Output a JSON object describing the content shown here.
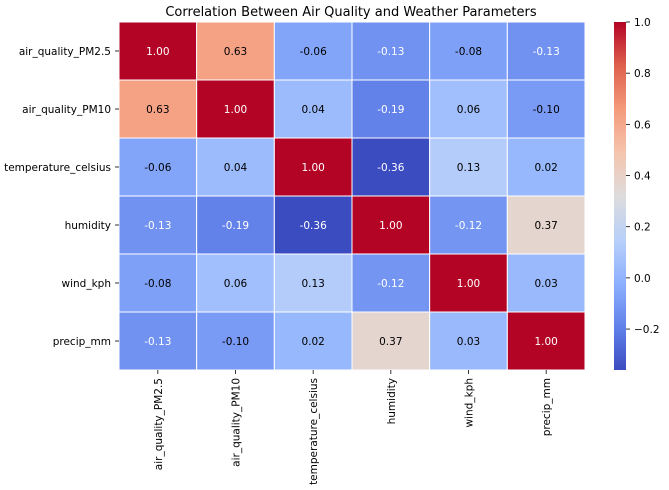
{
  "chart_data": {
    "type": "heatmap",
    "title": "Correlation Between Air Quality and Weather Parameters",
    "row_labels": [
      "air_quality_PM2.5",
      "air_quality_PM10",
      "temperature_celsius",
      "humidity",
      "wind_kph",
      "precip_mm"
    ],
    "col_labels": [
      "air_quality_PM2.5",
      "air_quality_PM10",
      "temperature_celsius",
      "humidity",
      "wind_kph",
      "precip_mm"
    ],
    "values": [
      [
        1.0,
        0.63,
        -0.06,
        -0.13,
        -0.08,
        -0.13
      ],
      [
        0.63,
        1.0,
        0.04,
        -0.19,
        0.06,
        -0.1
      ],
      [
        -0.06,
        0.04,
        1.0,
        -0.36,
        0.13,
        0.02
      ],
      [
        -0.13,
        -0.19,
        -0.36,
        1.0,
        -0.12,
        0.37
      ],
      [
        -0.08,
        0.06,
        0.13,
        -0.12,
        1.0,
        0.03
      ],
      [
        -0.13,
        -0.1,
        0.02,
        0.37,
        0.03,
        1.0
      ]
    ],
    "cell_labels": [
      [
        "1.00",
        "0.63",
        "-0.06",
        "-0.13",
        "-0.08",
        "-0.13"
      ],
      [
        "0.63",
        "1.00",
        "0.04",
        "-0.19",
        "0.06",
        "-0.10"
      ],
      [
        "-0.06",
        "0.04",
        "1.00",
        "-0.36",
        "0.13",
        "0.02"
      ],
      [
        "-0.13",
        "-0.19",
        "-0.36",
        "1.00",
        "-0.12",
        "0.37"
      ],
      [
        "-0.08",
        "0.06",
        "0.13",
        "-0.12",
        "1.00",
        "0.03"
      ],
      [
        "-0.13",
        "-0.10",
        "0.02",
        "0.37",
        "0.03",
        "1.00"
      ]
    ],
    "colormap": "coolwarm",
    "colorbar": {
      "vmin": -0.36,
      "vmax": 1.0,
      "ticks": [
        -0.2,
        0.0,
        0.2,
        0.4,
        0.6,
        0.8,
        1.0
      ],
      "tick_labels": [
        "−0.2",
        "0.0",
        "0.2",
        "0.4",
        "0.6",
        "0.8",
        "1.0"
      ]
    },
    "grid_line_color": "#ffffff",
    "annotation_text_dark": "#000000",
    "annotation_text_light": "#ffffff"
  }
}
